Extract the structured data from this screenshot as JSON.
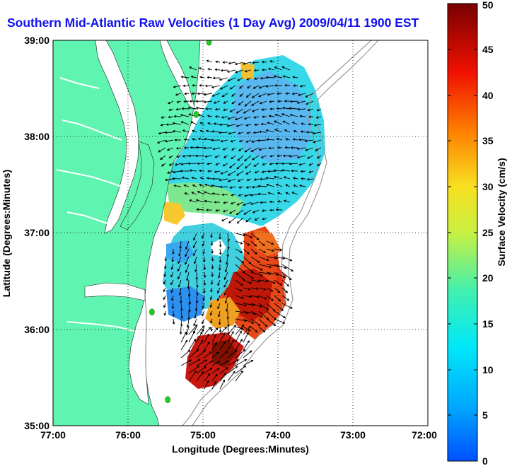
{
  "title": "Southern Mid-Atlantic Raw Velocities (1 Day Avg) 2009/04/11 1900 EST",
  "axes": {
    "xlabel": "Longitude (Degrees:Minutes)",
    "ylabel": "Latitude (Degrees:Minutes)",
    "x_ticks": [
      "77:00",
      "76:00",
      "75:00",
      "74:00",
      "73:00",
      "72:00"
    ],
    "y_ticks": [
      "39:00",
      "38:00",
      "37:00",
      "36:00",
      "35:00"
    ],
    "x_range": [
      -77,
      -72
    ],
    "y_range": [
      35,
      39
    ],
    "grid": "dotted"
  },
  "colorbar": {
    "label": "Surface Velocity (cm/s)",
    "ticks": [
      "50",
      "45",
      "40",
      "35",
      "30",
      "25",
      "20",
      "15",
      "10",
      "5",
      "0"
    ],
    "range": [
      0,
      50
    ],
    "colormap": "jet"
  },
  "colors": {
    "land": "#5ff5b0",
    "ocean": "#ffffff",
    "title": "#1010ee",
    "station": "#22cc22",
    "bathymetry": "#999999"
  },
  "map_data": {
    "type": "current_vector_field",
    "stations": [
      {
        "lon": -74.92,
        "lat": 38.98
      },
      {
        "lon": -75.09,
        "lat": 38.23
      },
      {
        "lon": -75.68,
        "lat": 36.18
      },
      {
        "lon": -75.47,
        "lat": 35.27
      }
    ]
  }
}
